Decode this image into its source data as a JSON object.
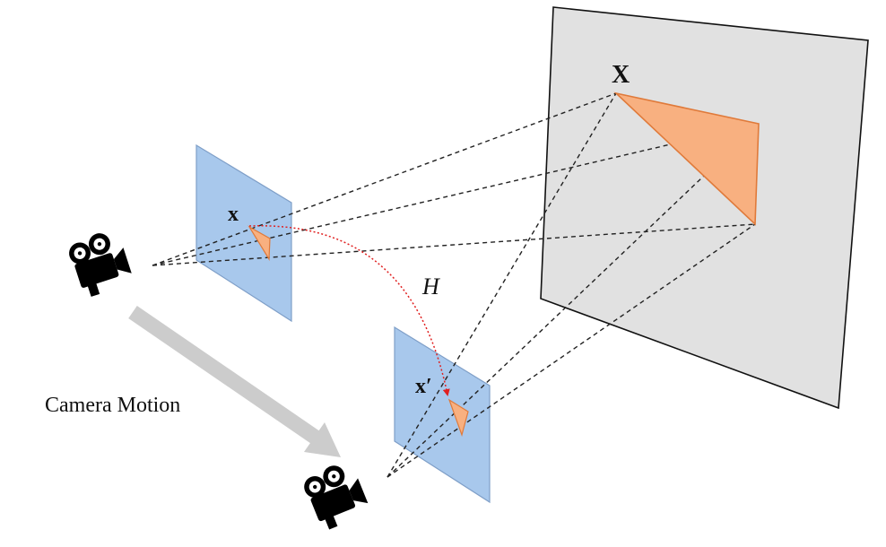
{
  "labels": {
    "world_point": "X",
    "image_point_1": "x",
    "image_point_2": "x′",
    "homography": "H",
    "camera_motion": "Camera Motion"
  },
  "colors": {
    "world_plane_fill": "#e1e1e1",
    "world_plane_stroke": "#111111",
    "image_plane_fill": "#a8c8ec",
    "image_plane_stroke": "#7f9fc8",
    "triangle_fill": "#f8b080",
    "triangle_stroke": "#e07a3a",
    "projection_line": "#222222",
    "homography_arc": "#e02020",
    "motion_arrow": "#cccccc",
    "camera": "#000000"
  },
  "icons": {
    "camera_1": "movie-camera-icon",
    "camera_2": "movie-camera-icon"
  }
}
